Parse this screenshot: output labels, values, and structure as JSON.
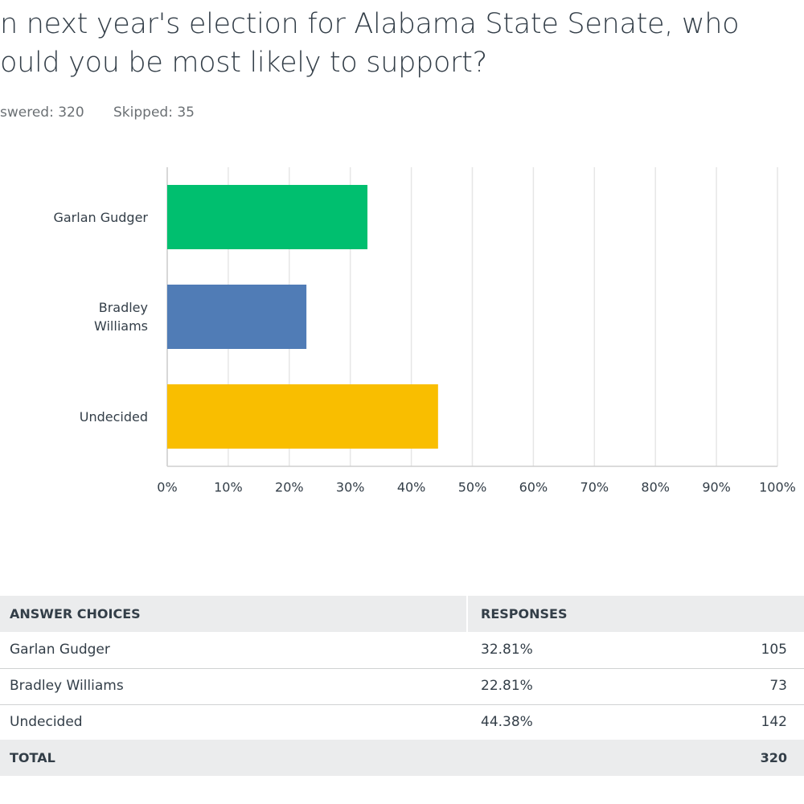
{
  "header": {
    "title_lines": [
      "n next year's election for Alabama State Senate, who",
      "ould you be most likely to support?"
    ],
    "answered": "swered: 320",
    "skipped": "Skipped: 35"
  },
  "chart_data": {
    "type": "bar",
    "orientation": "horizontal",
    "categories": [
      "Garlan Gudger",
      "Bradley Williams",
      "Undecided"
    ],
    "values": [
      32.81,
      22.81,
      44.38
    ],
    "colors": [
      "#00bf6f",
      "#507cb6",
      "#f9be00"
    ],
    "xlim": [
      0,
      100
    ],
    "xticks": [
      {
        "value": 0,
        "label": "0%"
      },
      {
        "value": 10,
        "label": "10%"
      },
      {
        "value": 20,
        "label": "20%"
      },
      {
        "value": 30,
        "label": "30%"
      },
      {
        "value": 40,
        "label": "40%"
      },
      {
        "value": 50,
        "label": "50%"
      },
      {
        "value": 60,
        "label": "60%"
      },
      {
        "value": 70,
        "label": "70%"
      },
      {
        "value": 80,
        "label": "80%"
      },
      {
        "value": 90,
        "label": "90%"
      },
      {
        "value": 100,
        "label": "100%"
      }
    ],
    "grid": true
  },
  "table": {
    "header": [
      "ANSWER CHOICES",
      "RESPONSES"
    ],
    "rows": [
      [
        "Garlan Gudger",
        "32.81%",
        "105"
      ],
      [
        "Bradley Williams",
        "22.81%",
        "73"
      ],
      [
        "Undecided",
        "44.38%",
        "142"
      ]
    ],
    "total": [
      "TOTAL",
      "320"
    ]
  }
}
